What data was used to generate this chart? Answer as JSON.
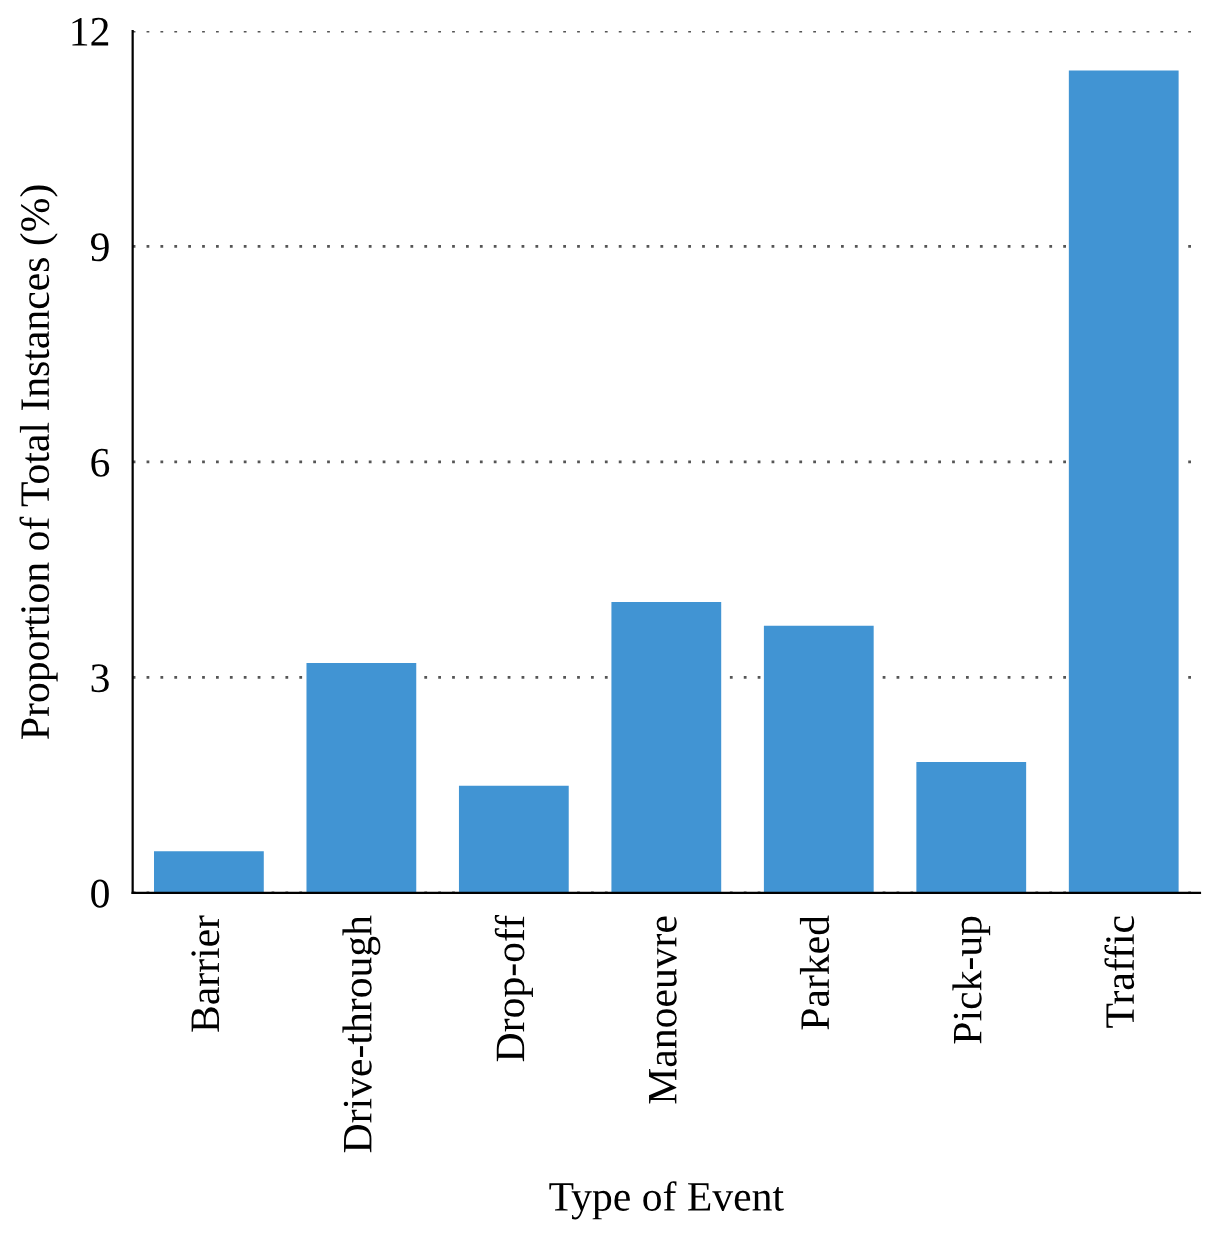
{
  "chart_data": {
    "type": "bar",
    "xlabel": "Type of Event",
    "ylabel": "Proportion of Total Instances (%)",
    "categories": [
      "Barrier",
      "Drive-through",
      "Drop-off",
      "Manoeuvre",
      "Parked",
      "Pick-up",
      "Traffic"
    ],
    "values": [
      0.58,
      3.2,
      1.49,
      4.05,
      3.72,
      1.82,
      11.45
    ],
    "color": "#4194d3",
    "ylim": [
      0,
      12
    ],
    "yticks": [
      0,
      3,
      6,
      9,
      12
    ],
    "grid": "y",
    "legend": false
  }
}
